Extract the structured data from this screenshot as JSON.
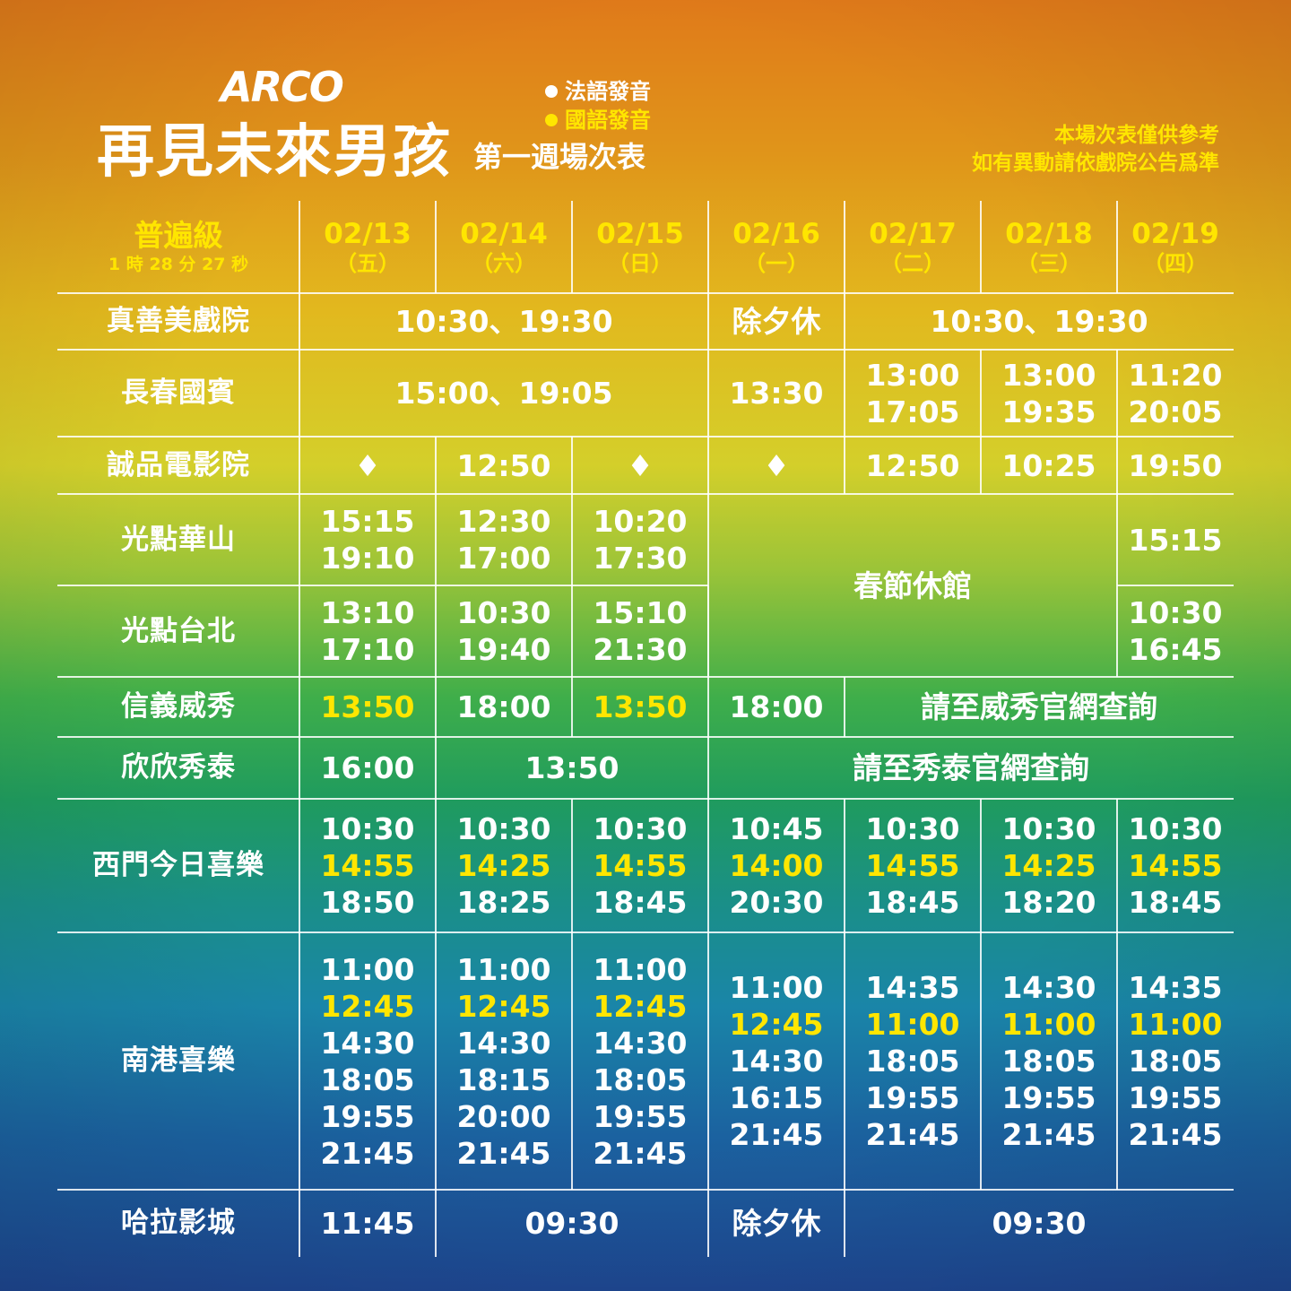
{
  "header": {
    "logo": "ARCO",
    "title": "再見未來男孩",
    "subtitle": "第一週場次表",
    "legend": [
      {
        "label": "法語發音",
        "color": "#ffffff"
      },
      {
        "label": "國語發音",
        "color": "#ffe600"
      }
    ],
    "notice_line1": "本場次表僅供參考",
    "notice_line2": "如有異動請依戲院公告爲準"
  },
  "colors": {
    "french": "#ffffff",
    "mandarin": "#ffe600"
  },
  "table": {
    "rating": "普遍級",
    "runtime": "1 時 28 分 27 秒",
    "columns": [
      {
        "date": "02/13",
        "weekday": "（五）"
      },
      {
        "date": "02/14",
        "weekday": "（六）"
      },
      {
        "date": "02/15",
        "weekday": "（日）"
      },
      {
        "date": "02/16",
        "weekday": "（一）"
      },
      {
        "date": "02/17",
        "weekday": "（二）"
      },
      {
        "date": "02/18",
        "weekday": "（三）"
      },
      {
        "date": "02/19",
        "weekday": "（四）"
      }
    ],
    "cinemas": [
      {
        "name": "真善美戲院",
        "cells": [
          {
            "lines": [
              {
                "t": "10:30、19:30"
              }
            ]
          },
          {
            "lines": [
              {
                "t": "除夕休"
              }
            ]
          },
          {
            "lines": [
              {
                "t": "10:30、19:30"
              }
            ]
          }
        ]
      },
      {
        "name": "長春國賓",
        "cells": [
          {
            "lines": [
              {
                "t": "15:00、19:05"
              }
            ]
          },
          {
            "lines": [
              {
                "t": "13:30"
              }
            ]
          },
          {
            "lines": [
              {
                "t": "13:00"
              },
              {
                "t": "17:05"
              }
            ]
          },
          {
            "lines": [
              {
                "t": "13:00"
              },
              {
                "t": "19:35"
              }
            ]
          },
          {
            "lines": [
              {
                "t": "11:20"
              },
              {
                "t": "20:05"
              }
            ]
          }
        ]
      },
      {
        "name": "誠品電影院",
        "cells": [
          {
            "lines": [
              {
                "t": "♦"
              }
            ]
          },
          {
            "lines": [
              {
                "t": "12:50"
              }
            ]
          },
          {
            "lines": [
              {
                "t": "♦"
              }
            ]
          },
          {
            "lines": [
              {
                "t": "♦"
              }
            ]
          },
          {
            "lines": [
              {
                "t": "12:50"
              }
            ]
          },
          {
            "lines": [
              {
                "t": "10:25"
              }
            ]
          },
          {
            "lines": [
              {
                "t": "19:50"
              }
            ]
          }
        ]
      },
      {
        "name": "光點華山",
        "cells": [
          {
            "lines": [
              {
                "t": "15:15"
              },
              {
                "t": "19:10"
              }
            ]
          },
          {
            "lines": [
              {
                "t": "12:30"
              },
              {
                "t": "17:00"
              }
            ]
          },
          {
            "lines": [
              {
                "t": "10:20"
              },
              {
                "t": "17:30"
              }
            ]
          },
          {
            "lines": [
              {
                "t": "春節休館"
              }
            ]
          },
          {
            "lines": [
              {
                "t": "15:15"
              }
            ]
          }
        ]
      },
      {
        "name": "光點台北",
        "cells": [
          {
            "lines": [
              {
                "t": "13:10"
              },
              {
                "t": "17:10"
              }
            ]
          },
          {
            "lines": [
              {
                "t": "10:30"
              },
              {
                "t": "19:40"
              }
            ]
          },
          {
            "lines": [
              {
                "t": "15:10"
              },
              {
                "t": "21:30"
              }
            ]
          },
          {
            "lines": [
              {
                "t": "10:30"
              },
              {
                "t": "16:45"
              }
            ]
          }
        ]
      },
      {
        "name": "信義威秀",
        "cells": [
          {
            "lines": [
              {
                "t": "13:50",
                "lang": "mandarin"
              }
            ]
          },
          {
            "lines": [
              {
                "t": "18:00"
              }
            ]
          },
          {
            "lines": [
              {
                "t": "13:50",
                "lang": "mandarin"
              }
            ]
          },
          {
            "lines": [
              {
                "t": "18:00"
              }
            ]
          },
          {
            "lines": [
              {
                "t": "請至威秀官網查詢"
              }
            ]
          }
        ]
      },
      {
        "name": "欣欣秀泰",
        "cells": [
          {
            "lines": [
              {
                "t": "16:00"
              }
            ]
          },
          {
            "lines": [
              {
                "t": "13:50"
              }
            ]
          },
          {
            "lines": [
              {
                "t": "請至秀泰官網查詢"
              }
            ]
          }
        ]
      },
      {
        "name": "西門今日喜樂",
        "cells": [
          {
            "lines": [
              {
                "t": "10:30"
              },
              {
                "t": "14:55",
                "lang": "mandarin"
              },
              {
                "t": "18:50"
              }
            ]
          },
          {
            "lines": [
              {
                "t": "10:30"
              },
              {
                "t": "14:25",
                "lang": "mandarin"
              },
              {
                "t": "18:25"
              }
            ]
          },
          {
            "lines": [
              {
                "t": "10:30"
              },
              {
                "t": "14:55",
                "lang": "mandarin"
              },
              {
                "t": "18:45"
              }
            ]
          },
          {
            "lines": [
              {
                "t": "10:45"
              },
              {
                "t": "14:00",
                "lang": "mandarin"
              },
              {
                "t": "20:30"
              }
            ]
          },
          {
            "lines": [
              {
                "t": "10:30"
              },
              {
                "t": "14:55",
                "lang": "mandarin"
              },
              {
                "t": "18:45"
              }
            ]
          },
          {
            "lines": [
              {
                "t": "10:30"
              },
              {
                "t": "14:25",
                "lang": "mandarin"
              },
              {
                "t": "18:20"
              }
            ]
          },
          {
            "lines": [
              {
                "t": "10:30"
              },
              {
                "t": "14:55",
                "lang": "mandarin"
              },
              {
                "t": "18:45"
              }
            ]
          }
        ]
      },
      {
        "name": "南港喜樂",
        "cells": [
          {
            "lines": [
              {
                "t": "11:00"
              },
              {
                "t": "12:45",
                "lang": "mandarin"
              },
              {
                "t": "14:30"
              },
              {
                "t": "18:05"
              },
              {
                "t": "19:55"
              },
              {
                "t": "21:45"
              }
            ]
          },
          {
            "lines": [
              {
                "t": "11:00"
              },
              {
                "t": "12:45",
                "lang": "mandarin"
              },
              {
                "t": "14:30"
              },
              {
                "t": "18:15"
              },
              {
                "t": "20:00"
              },
              {
                "t": "21:45"
              }
            ]
          },
          {
            "lines": [
              {
                "t": "11:00"
              },
              {
                "t": "12:45",
                "lang": "mandarin"
              },
              {
                "t": "14:30"
              },
              {
                "t": "18:05"
              },
              {
                "t": "19:55"
              },
              {
                "t": "21:45"
              }
            ]
          },
          {
            "lines": [
              {
                "t": "11:00"
              },
              {
                "t": "12:45",
                "lang": "mandarin"
              },
              {
                "t": "14:30"
              },
              {
                "t": "16:15"
              },
              {
                "t": "21:45"
              }
            ]
          },
          {
            "lines": [
              {
                "t": "14:35"
              },
              {
                "t": "11:00",
                "lang": "mandarin"
              },
              {
                "t": "18:05"
              },
              {
                "t": "19:55"
              },
              {
                "t": "21:45"
              }
            ]
          },
          {
            "lines": [
              {
                "t": "14:30"
              },
              {
                "t": "11:00",
                "lang": "mandarin"
              },
              {
                "t": "18:05"
              },
              {
                "t": "19:55"
              },
              {
                "t": "21:45"
              }
            ]
          },
          {
            "lines": [
              {
                "t": "14:35"
              },
              {
                "t": "11:00",
                "lang": "mandarin"
              },
              {
                "t": "18:05"
              },
              {
                "t": "19:55"
              },
              {
                "t": "21:45"
              }
            ]
          }
        ]
      },
      {
        "name": "哈拉影城",
        "cells": [
          {
            "lines": [
              {
                "t": "11:45"
              }
            ]
          },
          {
            "lines": [
              {
                "t": "09:30"
              }
            ]
          },
          {
            "lines": [
              {
                "t": "除夕休"
              }
            ]
          },
          {
            "lines": [
              {
                "t": "09:30"
              }
            ]
          }
        ]
      }
    ]
  }
}
